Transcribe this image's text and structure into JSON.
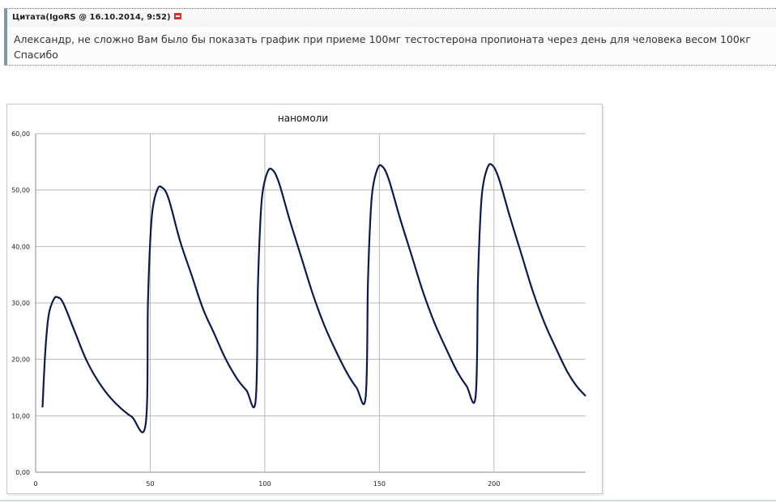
{
  "quote": {
    "header": "Цитата(IgoRS @ 16.10.2014, 9:52)",
    "icon": "quote-link-icon",
    "lines": [
      "Александр, не сложно Вам было бы показать график при приеме 100мг тестостерона пропионата через день для человека весом 100кг",
      "Спасибо"
    ]
  },
  "chart_data": {
    "type": "line",
    "title": "наномоли",
    "xlabel": "",
    "ylabel": "",
    "xlim": [
      0,
      240
    ],
    "ylim": [
      0,
      60
    ],
    "x_ticks": [
      "0",
      "50",
      "100",
      "150",
      "200"
    ],
    "y_ticks": [
      "0,00",
      "10,00",
      "20,00",
      "30,00",
      "40,00",
      "50,00",
      "60,00"
    ],
    "grid": true,
    "line_color": "#0d1a4f",
    "series": [
      {
        "x": [
          3,
          4,
          5,
          6,
          8,
          9.5,
          12,
          17,
          22,
          27,
          32,
          37,
          42,
          48,
          49,
          50,
          51,
          53,
          55,
          58,
          63,
          68,
          73,
          78,
          83,
          88,
          92,
          96,
          97,
          98,
          99,
          101,
          103,
          106,
          111,
          116,
          121,
          126,
          131,
          136,
          140,
          144,
          145,
          146,
          147,
          149,
          151,
          154,
          159,
          164,
          169,
          174,
          179,
          184,
          188,
          192,
          193,
          194,
          195,
          197,
          199,
          202,
          207,
          212,
          217,
          222,
          227,
          232,
          236,
          240
        ],
        "y": [
          11.5,
          20,
          25.5,
          28.5,
          30.7,
          31,
          30,
          25,
          20,
          16.3,
          13.5,
          11.4,
          9.8,
          8.5,
          30,
          41,
          46.5,
          50,
          50.5,
          48.5,
          41,
          35,
          29,
          24.5,
          20,
          16.5,
          14.5,
          12.7,
          33,
          44,
          49.5,
          53,
          53.7,
          51.5,
          44.5,
          38,
          31.5,
          26,
          21.5,
          17.5,
          15,
          13.3,
          33.5,
          44.5,
          50,
          53.6,
          54.3,
          52,
          45,
          38.5,
          32,
          26.5,
          22,
          17.8,
          15.3,
          13.5,
          33.7,
          44.7,
          50.2,
          53.8,
          54.5,
          52.2,
          45.2,
          38.6,
          32,
          26.5,
          22,
          17.8,
          15.3,
          13.5
        ]
      }
    ]
  }
}
